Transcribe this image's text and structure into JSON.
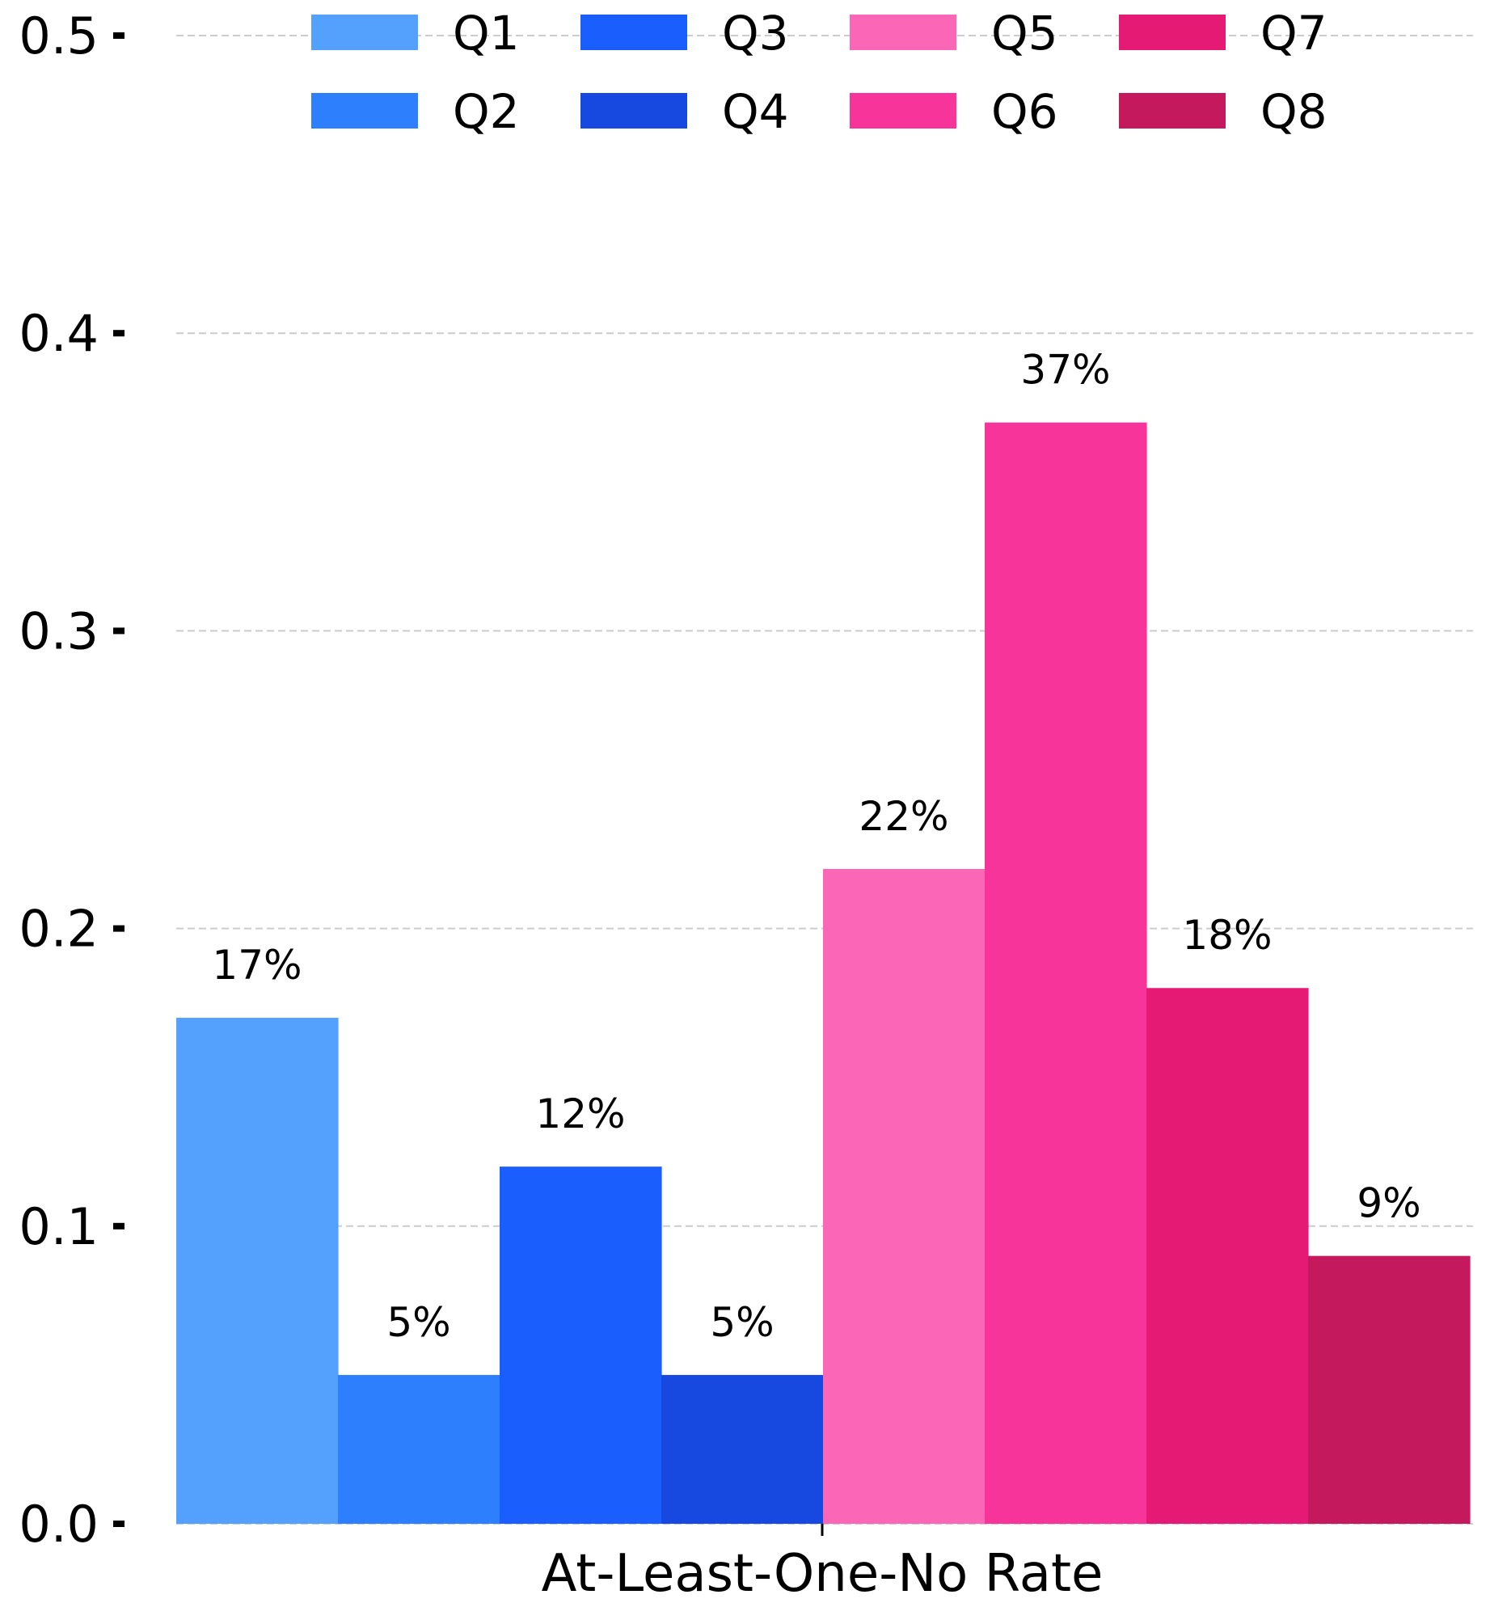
{
  "chart_data": {
    "type": "bar",
    "title": "",
    "xlabel": "",
    "ylabel": "",
    "categories": [
      "At-Least-One-No Rate"
    ],
    "ylim": [
      0,
      0.5
    ],
    "yticks": [
      0.0,
      0.1,
      0.2,
      0.3,
      0.4,
      0.5
    ],
    "ytick_labels": [
      "0.0",
      "0.1",
      "0.2",
      "0.3",
      "0.4",
      "0.5"
    ],
    "grid": true,
    "legend_position": "top",
    "series": [
      {
        "name": "Q1",
        "values": [
          0.17
        ],
        "label": "17%",
        "color": "#54a1fd"
      },
      {
        "name": "Q2",
        "values": [
          0.05
        ],
        "label": "5%",
        "color": "#2e7ffd"
      },
      {
        "name": "Q3",
        "values": [
          0.12
        ],
        "label": "12%",
        "color": "#1a5efd"
      },
      {
        "name": "Q4",
        "values": [
          0.05
        ],
        "label": "5%",
        "color": "#1749e0"
      },
      {
        "name": "Q5",
        "values": [
          0.22
        ],
        "label": "22%",
        "color": "#fb67b6"
      },
      {
        "name": "Q6",
        "values": [
          0.37
        ],
        "label": "37%",
        "color": "#f6349a"
      },
      {
        "name": "Q7",
        "values": [
          0.18
        ],
        "label": "18%",
        "color": "#e51a75"
      },
      {
        "name": "Q8",
        "values": [
          0.09
        ],
        "label": "9%",
        "color": "#c4195c"
      }
    ]
  }
}
